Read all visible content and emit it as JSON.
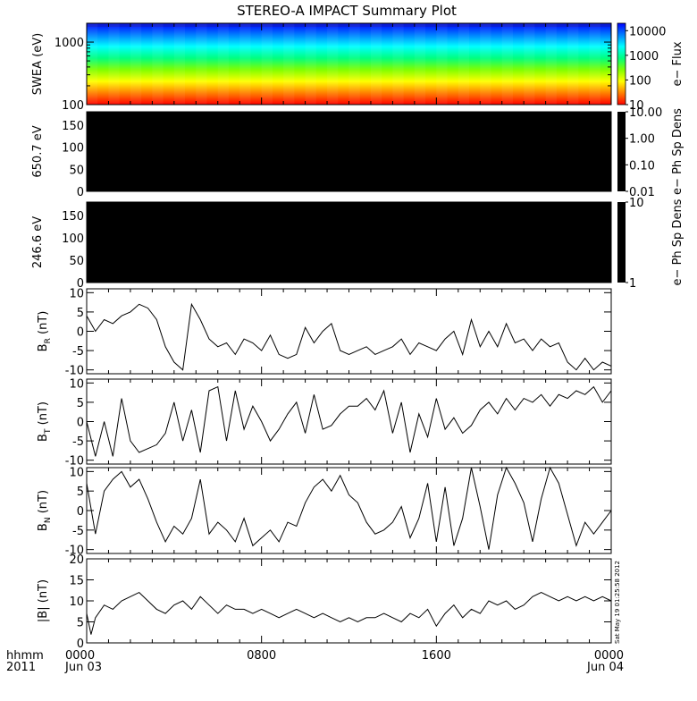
{
  "title": "STEREO-A IMPACT Summary Plot",
  "footer": {
    "left_line1": "hhmm",
    "left_line2": "2011",
    "xtick_labels": [
      "0000",
      "0800",
      "1600",
      "0000"
    ],
    "date_labels": [
      "Jun 03",
      "Jun 04"
    ]
  },
  "timestamp": "Sat May 19 01:25:58 2012",
  "colors": {
    "background": "#ffffff",
    "axes": "#000000",
    "line": "#000000",
    "empty_panel": "#000000"
  },
  "chart_data": [
    {
      "type": "heatmap",
      "name": "swea-spectrogram",
      "ylabel": "SWEA (eV)",
      "yscale": "log",
      "ylim": [
        100,
        2000
      ],
      "yticks": [
        100,
        1000
      ],
      "ytick_labels": [
        "100",
        "1000"
      ],
      "x_hours": [
        0,
        24
      ],
      "colorbar": {
        "label": "e− Flux",
        "scale": "log",
        "range": [
          10,
          20000
        ],
        "ticks": [
          10,
          100,
          1000,
          10000
        ],
        "tick_labels": [
          "10",
          "100",
          "1000",
          "10000"
        ],
        "colormap": [
          "#ff0000",
          "#ff8000",
          "#ffff00",
          "#80ff00",
          "#00ff80",
          "#00ffff",
          "#0080ff",
          "#0000ff"
        ]
      },
      "band_energies_eV": [
        100,
        160,
        250,
        400,
        650,
        1000,
        1400,
        1800
      ],
      "band_log_flux": [
        4.3,
        3.9,
        3.4,
        3.0,
        2.6,
        2.1,
        1.6,
        1.2
      ]
    },
    {
      "type": "heatmap",
      "name": "pad-650",
      "ylabel": "650.7 eV",
      "ylim": [
        0,
        180
      ],
      "yticks": [
        0,
        50,
        100,
        150
      ],
      "ytick_labels": [
        "0",
        "50",
        "100",
        "150"
      ],
      "fill": "#000000",
      "colorbar": {
        "label": "e− Ph Sp Dens",
        "scale": "log",
        "range": [
          0.01,
          10
        ],
        "ticks": [
          0.01,
          0.1,
          1,
          10
        ],
        "tick_labels": [
          "0.01",
          "0.10",
          "1.00",
          "10.00"
        ]
      }
    },
    {
      "type": "heatmap",
      "name": "pad-246",
      "ylabel": "246.6 eV",
      "ylim": [
        0,
        180
      ],
      "yticks": [
        0,
        50,
        100,
        150
      ],
      "ytick_labels": [
        "0",
        "50",
        "100",
        "150"
      ],
      "fill": "#000000",
      "colorbar": {
        "label": "e− Ph Sp Dens",
        "scale": "log",
        "range": [
          1,
          10
        ],
        "ticks": [
          1,
          10
        ],
        "tick_labels": [
          "1",
          "10"
        ]
      }
    },
    {
      "type": "line",
      "name": "br",
      "ylabel_main": "B",
      "ylabel_sub": "R",
      "ylabel_unit": " (nT)",
      "ylim": [
        -11,
        11
      ],
      "yticks": [
        -10,
        -5,
        0,
        5,
        10
      ],
      "ytick_labels": [
        "-10",
        "-5",
        "0",
        "5",
        "10"
      ],
      "x_hours": [
        0,
        0.4,
        0.8,
        1.2,
        1.6,
        2.0,
        2.4,
        2.8,
        3.2,
        3.6,
        4.0,
        4.4,
        4.8,
        5.0,
        5.2,
        5.6,
        6.0,
        6.4,
        6.8,
        7.2,
        7.6,
        8.0,
        8.4,
        8.8,
        9.2,
        9.6,
        10.0,
        10.4,
        10.8,
        11.2,
        11.6,
        12.0,
        12.4,
        12.8,
        13.2,
        13.6,
        14.0,
        14.4,
        14.8,
        15.2,
        15.6,
        16.0,
        16.4,
        16.8,
        17.2,
        17.6,
        18.0,
        18.4,
        18.8,
        19.2,
        19.6,
        20.0,
        20.4,
        20.8,
        21.2,
        21.6,
        22.0,
        22.4,
        22.8,
        23.2,
        23.6,
        24.0
      ],
      "values": [
        4,
        0,
        3,
        2,
        4,
        5,
        7,
        6,
        3,
        -4,
        -8,
        -10,
        7,
        5,
        3,
        -2,
        -4,
        -3,
        -6,
        -2,
        -3,
        -5,
        -1,
        -6,
        -7,
        -6,
        1,
        -3,
        0,
        2,
        -5,
        -6,
        -5,
        -4,
        -6,
        -5,
        -4,
        -2,
        -6,
        -3,
        -4,
        -5,
        -2,
        0,
        -6,
        3,
        -4,
        0,
        -4,
        2,
        -3,
        -2,
        -5,
        -2,
        -4,
        -3,
        -8,
        -10,
        -7,
        -10,
        -8,
        -9
      ]
    },
    {
      "type": "line",
      "name": "bt",
      "ylabel_main": "B",
      "ylabel_sub": "T",
      "ylabel_unit": " (nT)",
      "ylim": [
        -11,
        11
      ],
      "yticks": [
        -10,
        -5,
        0,
        5,
        10
      ],
      "ytick_labels": [
        "-10",
        "-5",
        "0",
        "5",
        "10"
      ],
      "x_hours": [
        0,
        0.4,
        0.8,
        1.2,
        1.6,
        2.0,
        2.4,
        2.8,
        3.2,
        3.6,
        4.0,
        4.4,
        4.8,
        5.2,
        5.6,
        6.0,
        6.4,
        6.8,
        7.2,
        7.6,
        8.0,
        8.4,
        8.8,
        9.2,
        9.6,
        10.0,
        10.4,
        10.8,
        11.2,
        11.6,
        12.0,
        12.4,
        12.8,
        13.2,
        13.6,
        14.0,
        14.4,
        14.8,
        15.2,
        15.6,
        16.0,
        16.4,
        16.8,
        17.2,
        17.6,
        18.0,
        18.4,
        18.8,
        19.2,
        19.6,
        20.0,
        20.4,
        20.8,
        21.2,
        21.6,
        22.0,
        22.4,
        22.8,
        23.2,
        23.6,
        24.0
      ],
      "values": [
        0,
        -9,
        0,
        -9,
        6,
        -5,
        -8,
        -7,
        -6,
        -3,
        5,
        -5,
        3,
        -8,
        8,
        9,
        -5,
        8,
        -2,
        4,
        0,
        -5,
        -2,
        2,
        5,
        -3,
        7,
        -2,
        -1,
        2,
        4,
        4,
        6,
        3,
        8,
        -3,
        5,
        -8,
        2,
        -4,
        6,
        -2,
        1,
        -3,
        -1,
        3,
        5,
        2,
        6,
        3,
        6,
        5,
        7,
        4,
        7,
        6,
        8,
        7,
        9,
        5,
        8
      ]
    },
    {
      "type": "line",
      "name": "bn",
      "ylabel_main": "B",
      "ylabel_sub": "N",
      "ylabel_unit": " (nT)",
      "ylim": [
        -11,
        11
      ],
      "yticks": [
        -10,
        -5,
        0,
        5,
        10
      ],
      "ytick_labels": [
        "-10",
        "-5",
        "0",
        "5",
        "10"
      ],
      "x_hours": [
        0,
        0.4,
        0.8,
        1.2,
        1.6,
        2.0,
        2.4,
        2.8,
        3.2,
        3.6,
        4.0,
        4.4,
        4.8,
        5.2,
        5.6,
        6.0,
        6.4,
        6.8,
        7.2,
        7.6,
        8.0,
        8.4,
        8.8,
        9.2,
        9.6,
        10.0,
        10.4,
        10.8,
        11.2,
        11.6,
        12.0,
        12.4,
        12.8,
        13.2,
        13.6,
        14.0,
        14.4,
        14.8,
        15.2,
        15.6,
        16.0,
        16.4,
        16.8,
        17.2,
        17.6,
        18.0,
        18.4,
        18.8,
        19.2,
        19.6,
        20.0,
        20.4,
        20.8,
        21.2,
        21.6,
        22.0,
        22.4,
        22.8,
        23.2,
        23.6,
        24.0
      ],
      "values": [
        7,
        -6,
        5,
        8,
        10,
        6,
        8,
        3,
        -3,
        -8,
        -4,
        -6,
        -2,
        8,
        -6,
        -3,
        -5,
        -8,
        -2,
        -9,
        -7,
        -5,
        -8,
        -3,
        -4,
        2,
        6,
        8,
        5,
        9,
        4,
        2,
        -3,
        -6,
        -5,
        -3,
        1,
        -7,
        -2,
        7,
        -8,
        6,
        -9,
        -2,
        11,
        1,
        -10,
        4,
        11,
        7,
        2,
        -8,
        3,
        11,
        7,
        -1,
        -9,
        -3,
        -6,
        -3,
        0
      ]
    },
    {
      "type": "line",
      "name": "bmag",
      "ylabel_main": "|B|",
      "ylabel_sub": "",
      "ylabel_unit": " (nT)",
      "ylim": [
        0,
        20
      ],
      "yticks": [
        0,
        5,
        10,
        15,
        20
      ],
      "ytick_labels": [
        "0",
        "5",
        "10",
        "15",
        "20"
      ],
      "x_hours": [
        0,
        0.2,
        0.4,
        0.8,
        1.2,
        1.6,
        2.0,
        2.4,
        2.8,
        3.2,
        3.6,
        4.0,
        4.4,
        4.8,
        5.2,
        5.6,
        6.0,
        6.4,
        6.8,
        7.2,
        7.6,
        8.0,
        8.4,
        8.8,
        9.2,
        9.6,
        10.0,
        10.4,
        10.8,
        11.2,
        11.6,
        12.0,
        12.4,
        12.8,
        13.2,
        13.6,
        14.0,
        14.4,
        14.8,
        15.2,
        15.6,
        16.0,
        16.4,
        16.8,
        17.2,
        17.6,
        18.0,
        18.4,
        18.8,
        19.2,
        19.6,
        20.0,
        20.4,
        20.8,
        21.2,
        21.6,
        22.0,
        22.4,
        22.8,
        23.2,
        23.6,
        24.0
      ],
      "values": [
        7,
        2,
        6,
        9,
        8,
        10,
        11,
        12,
        10,
        8,
        7,
        9,
        10,
        8,
        11,
        9,
        7,
        9,
        8,
        8,
        7,
        8,
        7,
        6,
        7,
        8,
        7,
        6,
        7,
        6,
        5,
        6,
        5,
        6,
        6,
        7,
        6,
        5,
        7,
        6,
        8,
        4,
        7,
        9,
        6,
        8,
        7,
        10,
        9,
        10,
        8,
        9,
        11,
        12,
        11,
        10,
        11,
        10,
        11,
        10,
        11,
        10
      ]
    }
  ]
}
